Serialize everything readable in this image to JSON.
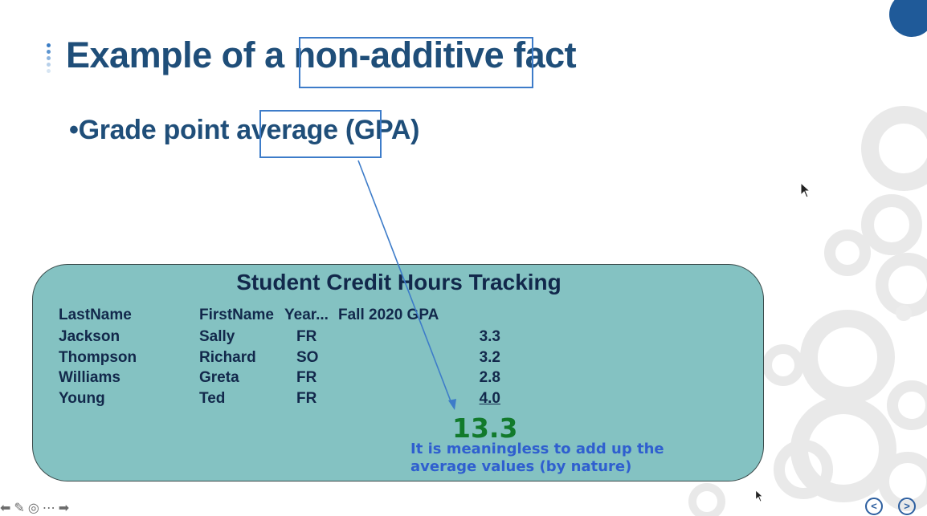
{
  "slide": {
    "title_pre": "Example of a ",
    "title_highlight": "non-additive",
    "title_post": " fact",
    "bullet_pre": "Grade point ",
    "bullet_highlight": "average",
    "bullet_post": " (GPA)"
  },
  "table": {
    "title": "Student Credit Hours Tracking",
    "headers": [
      "LastName",
      "FirstName",
      "Year...",
      "Fall 2020 GPA"
    ],
    "rows": [
      [
        "Jackson",
        "Sally",
        "FR",
        "3.3"
      ],
      [
        "Thompson",
        "Richard",
        "SO",
        "3.2"
      ],
      [
        "Williams",
        "Greta",
        "FR",
        "2.8"
      ],
      [
        "Young",
        "Ted",
        "FR",
        "4.0"
      ]
    ],
    "total": "13.3",
    "note_line1": "It is meaningless to add up the",
    "note_line2": "average values (by nature)"
  },
  "colors": {
    "title": "#1f4e79",
    "panel": "#84c2c2",
    "highlight": "#3d7cc9",
    "total": "#127a2c",
    "note": "#2f5fcf"
  },
  "toolbar": {
    "icons": [
      "arrow-left-icon",
      "pen-icon",
      "screen-icon",
      "more-icon",
      "arrow-right-icon"
    ]
  },
  "nav": {
    "prev_icon": "chevron-left-icon",
    "next_icon": "chevron-right-icon"
  }
}
